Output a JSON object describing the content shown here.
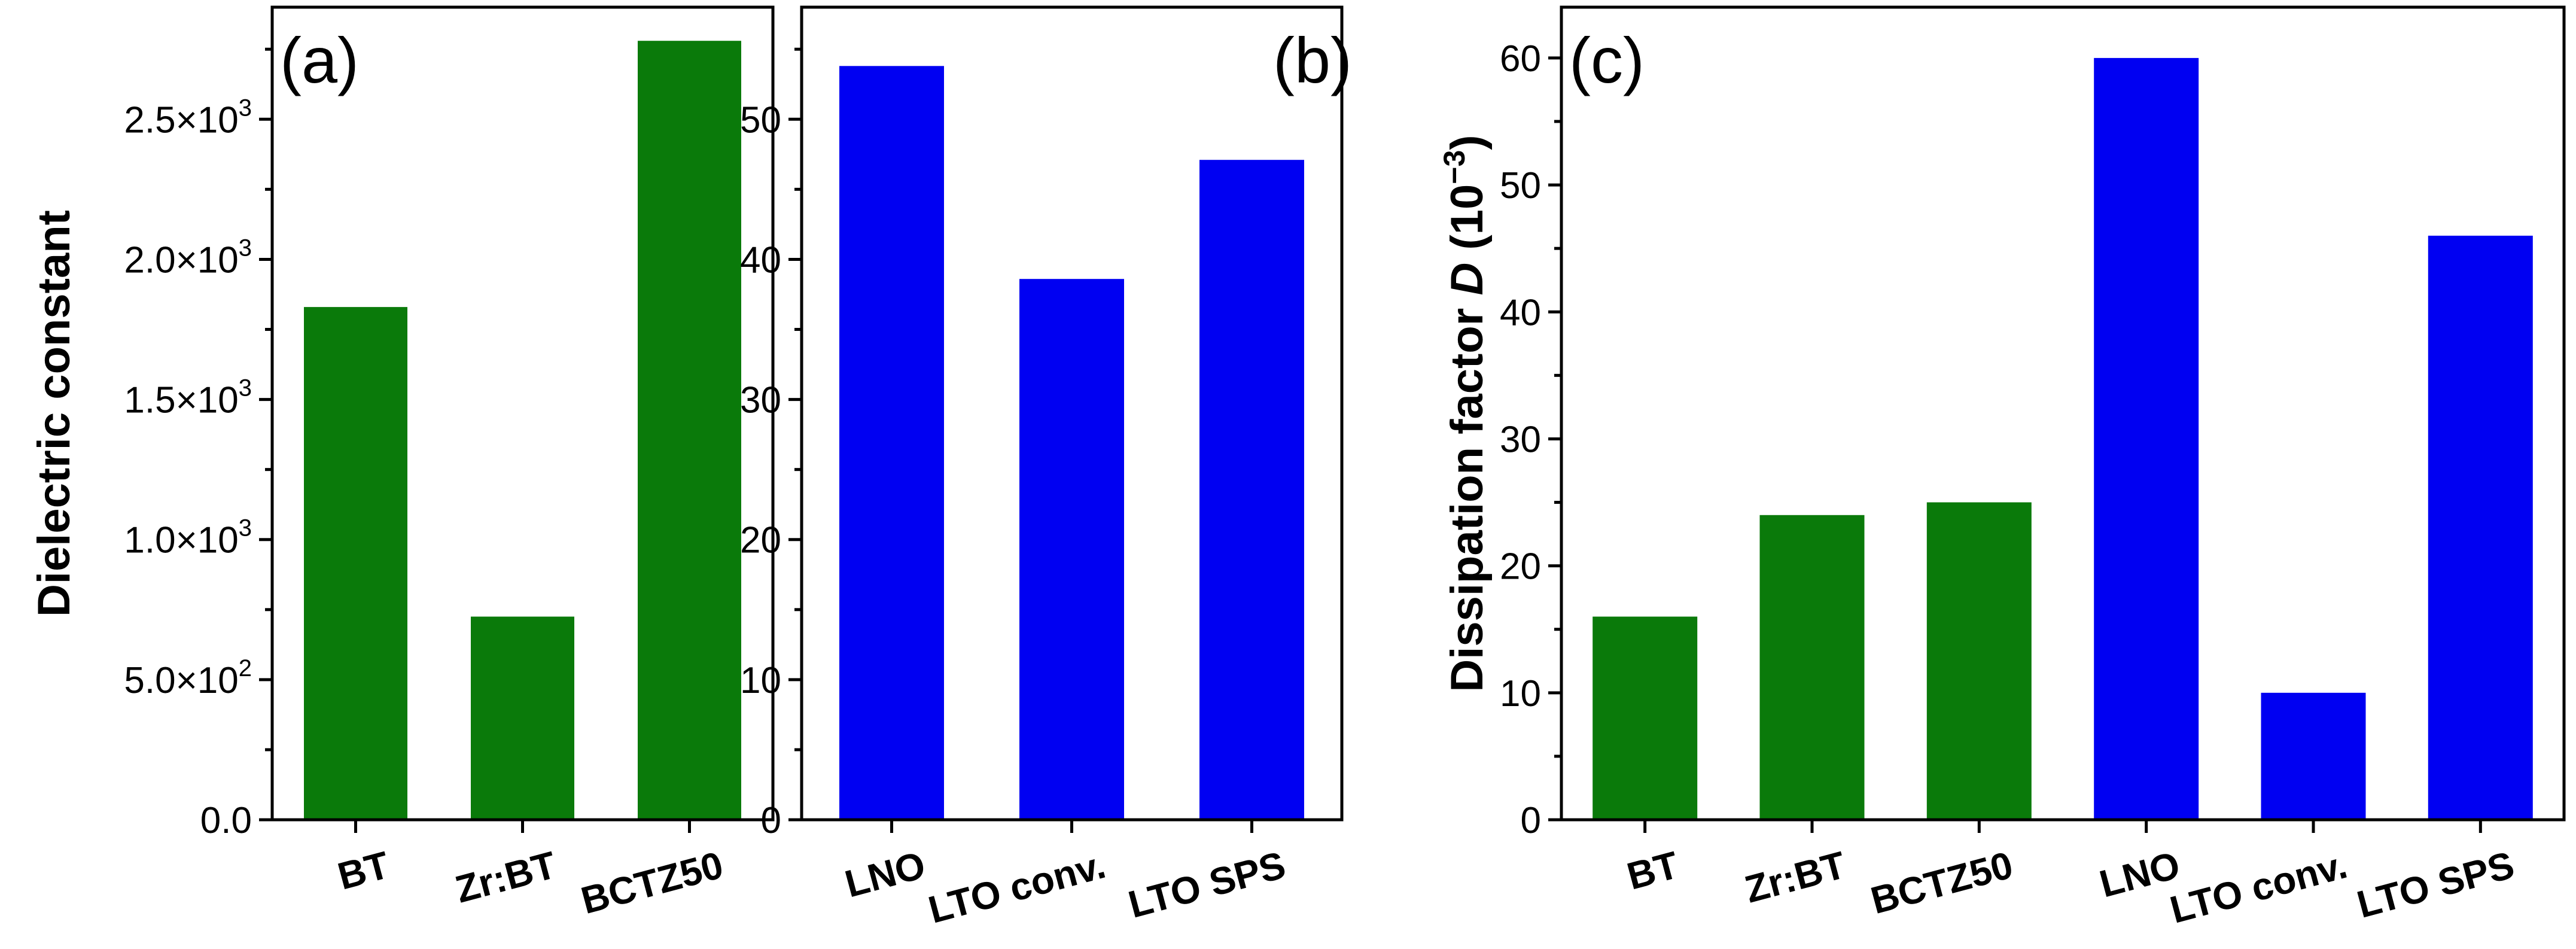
{
  "colors": {
    "green": "#0a7a0a",
    "blue": "#0000f2"
  },
  "chart_data": [
    {
      "type": "bar",
      "panel": "(a)",
      "categories": [
        "BT",
        "Zr:BT",
        "BCTZ50"
      ],
      "values": [
        1830,
        725,
        2780
      ],
      "bar_colors": [
        "green",
        "green",
        "green"
      ],
      "ylabel": "Dielectric constant",
      "ylim": [
        0,
        2900
      ],
      "yticks": [
        0,
        500,
        1000,
        1500,
        2000,
        2500
      ],
      "ytick_labels": [
        {
          "main": "0.0",
          "exp": ""
        },
        {
          "main": "5.0×10",
          "exp": "2"
        },
        {
          "main": "1.0×10",
          "exp": "3"
        },
        {
          "main": "1.5×10",
          "exp": "3"
        },
        {
          "main": "2.0×10",
          "exp": "3"
        },
        {
          "main": "2.5×10",
          "exp": "3"
        }
      ],
      "minor_ticks": true
    },
    {
      "type": "bar",
      "panel": "(b)",
      "categories": [
        "LNO",
        "LTO conv.",
        "LTO SPS"
      ],
      "values": [
        53.8,
        38.6,
        47.1
      ],
      "bar_colors": [
        "blue",
        "blue",
        "blue"
      ],
      "ylabel": "",
      "ylim": [
        0,
        58
      ],
      "yticks": [
        0,
        10,
        20,
        30,
        40,
        50
      ],
      "ytick_labels": [
        {
          "main": "0",
          "exp": ""
        },
        {
          "main": "10",
          "exp": ""
        },
        {
          "main": "20",
          "exp": ""
        },
        {
          "main": "30",
          "exp": ""
        },
        {
          "main": "40",
          "exp": ""
        },
        {
          "main": "50",
          "exp": ""
        }
      ],
      "minor_ticks": true
    },
    {
      "type": "bar",
      "panel": "(c)",
      "categories": [
        "BT",
        "Zr:BT",
        "BCTZ50",
        "LNO",
        "LTO conv.",
        "LTO SPS"
      ],
      "values": [
        16,
        24,
        25,
        60,
        10,
        46
      ],
      "bar_colors": [
        "green",
        "green",
        "green",
        "blue",
        "blue",
        "blue"
      ],
      "ylabel": "Dissipation factor D (10−3)",
      "ylabel_parts": {
        "pre": "Dissipation factor ",
        "ital": "D",
        "mid": " (10",
        "sup": "−3",
        "post": ")"
      },
      "ylim": [
        0,
        64
      ],
      "yticks": [
        0,
        10,
        20,
        30,
        40,
        50,
        60
      ],
      "ytick_labels": [
        {
          "main": "0",
          "exp": ""
        },
        {
          "main": "10",
          "exp": ""
        },
        {
          "main": "20",
          "exp": ""
        },
        {
          "main": "30",
          "exp": ""
        },
        {
          "main": "40",
          "exp": ""
        },
        {
          "main": "50",
          "exp": ""
        },
        {
          "main": "60",
          "exp": ""
        }
      ],
      "minor_ticks": true
    }
  ]
}
